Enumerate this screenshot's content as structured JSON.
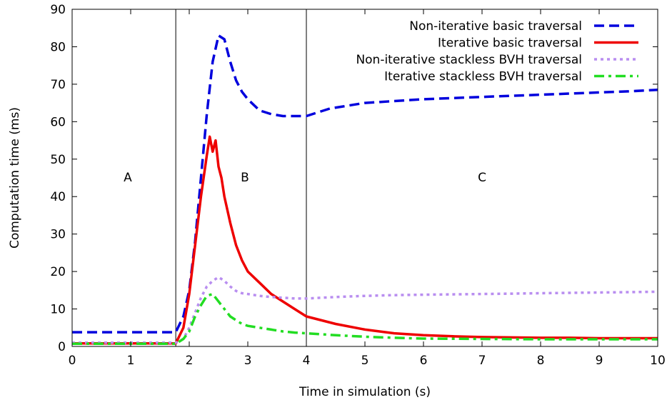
{
  "chart_data": {
    "type": "line",
    "xlabel": "Time in simulation (s)",
    "ylabel": "Computation time (ms)",
    "xlim": [
      0,
      10
    ],
    "ylim": [
      0,
      90
    ],
    "xticks": [
      0,
      1,
      2,
      3,
      4,
      5,
      6,
      7,
      8,
      9,
      10
    ],
    "yticks": [
      0,
      10,
      20,
      30,
      40,
      50,
      60,
      70,
      80,
      90
    ],
    "grid": false,
    "legend_position": "top-right",
    "region_dividers": [
      1.77,
      4.0
    ],
    "region_labels": [
      {
        "text": "A",
        "x": 0.95,
        "y": 44
      },
      {
        "text": "B",
        "x": 2.95,
        "y": 44
      },
      {
        "text": "C",
        "x": 7.0,
        "y": 44
      }
    ],
    "series": [
      {
        "name": "Non-iterative basic traversal",
        "color": "#0000dd",
        "style": "dashed",
        "x": [
          0,
          0.5,
          1,
          1.5,
          1.77,
          1.9,
          2.0,
          2.1,
          2.2,
          2.3,
          2.4,
          2.5,
          2.6,
          2.7,
          2.8,
          2.9,
          3.0,
          3.2,
          3.4,
          3.6,
          3.8,
          4.0,
          4.2,
          4.4,
          4.6,
          4.8,
          5.0,
          5.5,
          6.0,
          6.5,
          7.0,
          7.5,
          8.0,
          8.5,
          9.0,
          9.5,
          10.0
        ],
        "y": [
          3.8,
          3.8,
          3.8,
          3.8,
          3.8,
          8,
          15,
          28,
          45,
          62,
          76,
          83,
          82,
          76,
          71,
          68,
          66,
          63,
          62,
          61.5,
          61.5,
          61.5,
          62.5,
          63.5,
          64,
          64.5,
          65,
          65.5,
          66,
          66.3,
          66.6,
          66.9,
          67.2,
          67.5,
          67.8,
          68.1,
          68.5
        ]
      },
      {
        "name": "Iterative basic traversal",
        "color": "#ee0000",
        "style": "solid",
        "x": [
          0,
          0.5,
          1,
          1.5,
          1.77,
          1.9,
          2.0,
          2.1,
          2.2,
          2.3,
          2.35,
          2.4,
          2.45,
          2.5,
          2.55,
          2.6,
          2.7,
          2.8,
          2.9,
          3.0,
          3.2,
          3.4,
          3.6,
          3.8,
          4.0,
          4.5,
          5.0,
          5.5,
          6.0,
          6.5,
          7.0,
          7.5,
          8.0,
          8.5,
          9.0,
          9.5,
          10.0
        ],
        "y": [
          0.8,
          0.8,
          0.8,
          0.8,
          0.8,
          5,
          14,
          27,
          40,
          51,
          56,
          52,
          55,
          48,
          45,
          40,
          33,
          27,
          23,
          20,
          17,
          14,
          12,
          10,
          8,
          6,
          4.5,
          3.5,
          3,
          2.7,
          2.5,
          2.4,
          2.3,
          2.3,
          2.2,
          2.2,
          2.2
        ]
      },
      {
        "name": "Non-iterative stackless BVH traversal",
        "color": "#b98ef0",
        "style": "dotted",
        "x": [
          0,
          0.5,
          1,
          1.5,
          1.77,
          1.9,
          2.0,
          2.1,
          2.2,
          2.3,
          2.4,
          2.5,
          2.6,
          2.7,
          2.8,
          2.9,
          3.0,
          3.2,
          3.4,
          3.6,
          3.8,
          4.0,
          4.5,
          5.0,
          5.5,
          6.0,
          6.5,
          7.0,
          7.5,
          8.0,
          8.5,
          9.0,
          9.5,
          10.0
        ],
        "y": [
          1.0,
          1.0,
          1.0,
          1.0,
          1.0,
          2,
          5,
          9,
          13,
          16,
          17.5,
          18.5,
          17.5,
          16,
          14.8,
          14.2,
          14,
          13.5,
          13.2,
          13,
          12.8,
          12.8,
          13.2,
          13.5,
          13.7,
          13.8,
          13.9,
          14,
          14.1,
          14.2,
          14.3,
          14.4,
          14.5,
          14.6
        ]
      },
      {
        "name": "Iterative stackless BVH traversal",
        "color": "#22dd22",
        "style": "dashdot",
        "x": [
          0,
          0.5,
          1,
          1.5,
          1.77,
          1.9,
          2.0,
          2.1,
          2.2,
          2.3,
          2.4,
          2.5,
          2.6,
          2.7,
          2.8,
          2.9,
          3.0,
          3.2,
          3.4,
          3.6,
          3.8,
          4.0,
          4.5,
          5.0,
          5.5,
          6.0,
          7.0,
          8.0,
          9.0,
          10.0
        ],
        "y": [
          0.7,
          0.7,
          0.7,
          0.7,
          0.7,
          2,
          4,
          8,
          11,
          13.5,
          14,
          12,
          10,
          8,
          7,
          6,
          5.5,
          5,
          4.5,
          4,
          3.7,
          3.5,
          3,
          2.6,
          2.3,
          2.1,
          2.0,
          1.9,
          1.9,
          1.9
        ]
      }
    ]
  }
}
